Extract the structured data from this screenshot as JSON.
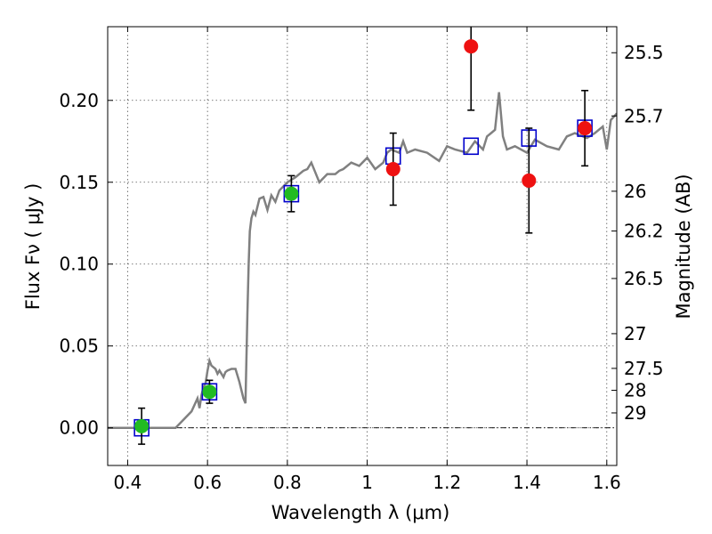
{
  "chart_data": {
    "type": "scatter",
    "xlabel": "Wavelength  λ (μm)",
    "ylabel": "Flux  Fν  ( μJy )",
    "y2label": "Magnitude (AB)",
    "xlim": [
      0.35,
      1.625
    ],
    "ylim": [
      -0.023,
      0.245
    ],
    "xticks": [
      0.4,
      0.6,
      0.8,
      1.0,
      1.2,
      1.4,
      1.6
    ],
    "xtick_labels": [
      "0.4",
      "0.6",
      "0.8",
      "1",
      "1.2",
      "1.4",
      "1.6"
    ],
    "yticks": [
      0.0,
      0.05,
      0.1,
      0.15,
      0.2
    ],
    "ytick_labels": [
      "0.00",
      "0.05",
      "0.10",
      "0.15",
      "0.20"
    ],
    "magnitude_ticks": [
      {
        "label": "25.5",
        "flux": 0.2291
      },
      {
        "label": "25.7",
        "flux": 0.1905
      },
      {
        "label": "26",
        "flux": 0.1445
      },
      {
        "label": "26.2",
        "flux": 0.1202
      },
      {
        "label": "26.5",
        "flux": 0.0912
      },
      {
        "label": "27",
        "flux": 0.0575
      },
      {
        "label": "27.5",
        "flux": 0.0363
      },
      {
        "label": "28",
        "flux": 0.0229
      },
      {
        "label": "29",
        "flux": 0.0091
      }
    ],
    "grid": true,
    "zero_line": true,
    "colors": {
      "model": "#808080",
      "green_points": "#22bb22",
      "red_points": "#ee1111",
      "model_boxes": "#0000cc",
      "errorbars": "#000000",
      "grid": "#555555"
    },
    "series": [
      {
        "style": "line",
        "color": "#808080",
        "x": [
          0.35,
          0.52,
          0.56,
          0.575,
          0.58,
          0.585,
          0.59,
          0.595,
          0.6,
          0.605,
          0.61,
          0.62,
          0.625,
          0.63,
          0.64,
          0.645,
          0.65,
          0.66,
          0.67,
          0.68,
          0.69,
          0.695,
          0.7,
          0.703,
          0.706,
          0.71,
          0.715,
          0.72,
          0.73,
          0.74,
          0.75,
          0.76,
          0.77,
          0.78,
          0.8,
          0.82,
          0.84,
          0.85,
          0.86,
          0.88,
          0.9,
          0.92,
          0.93,
          0.94,
          0.96,
          0.98,
          1.0,
          1.02,
          1.04,
          1.05,
          1.06,
          1.08,
          1.09,
          1.1,
          1.12,
          1.15,
          1.18,
          1.2,
          1.22,
          1.25,
          1.27,
          1.29,
          1.3,
          1.31,
          1.32,
          1.33,
          1.34,
          1.35,
          1.37,
          1.4,
          1.42,
          1.45,
          1.48,
          1.5,
          1.52,
          1.55,
          1.57,
          1.59,
          1.6,
          1.61,
          1.625
        ],
        "y": [
          0.0,
          0.0,
          0.01,
          0.018,
          0.012,
          0.02,
          0.025,
          0.027,
          0.035,
          0.041,
          0.038,
          0.036,
          0.033,
          0.035,
          0.031,
          0.034,
          0.035,
          0.036,
          0.036,
          0.028,
          0.018,
          0.015,
          0.07,
          0.1,
          0.12,
          0.128,
          0.132,
          0.13,
          0.14,
          0.141,
          0.133,
          0.142,
          0.138,
          0.145,
          0.15,
          0.153,
          0.157,
          0.158,
          0.162,
          0.15,
          0.155,
          0.155,
          0.157,
          0.158,
          0.162,
          0.16,
          0.165,
          0.158,
          0.162,
          0.168,
          0.17,
          0.168,
          0.175,
          0.168,
          0.17,
          0.168,
          0.163,
          0.172,
          0.17,
          0.168,
          0.175,
          0.17,
          0.178,
          0.18,
          0.182,
          0.205,
          0.178,
          0.17,
          0.172,
          0.168,
          0.176,
          0.172,
          0.17,
          0.178,
          0.18,
          0.177,
          0.18,
          0.184,
          0.17,
          0.188,
          0.192
        ]
      },
      {
        "name": "",
        "style": "box",
        "color": "#0000cc",
        "x": [
          0.435,
          0.605,
          0.81,
          1.065,
          1.26,
          1.405,
          1.545
        ],
        "y": [
          0.0,
          0.022,
          0.143,
          0.166,
          0.172,
          0.177,
          0.183
        ]
      },
      {
        "style": "point",
        "color": "#22bb22",
        "x": [
          0.435,
          0.605,
          0.81
        ],
        "y": [
          0.001,
          0.022,
          0.143
        ],
        "err": [
          0.011,
          0.007,
          0.011
        ]
      },
      {
        "style": "point",
        "color": "#ee1111",
        "x": [
          1.065,
          1.26,
          1.405,
          1.545
        ],
        "y": [
          0.158,
          0.233,
          0.151,
          0.183
        ],
        "err": [
          0.022,
          0.039,
          0.032,
          0.023
        ]
      }
    ]
  }
}
